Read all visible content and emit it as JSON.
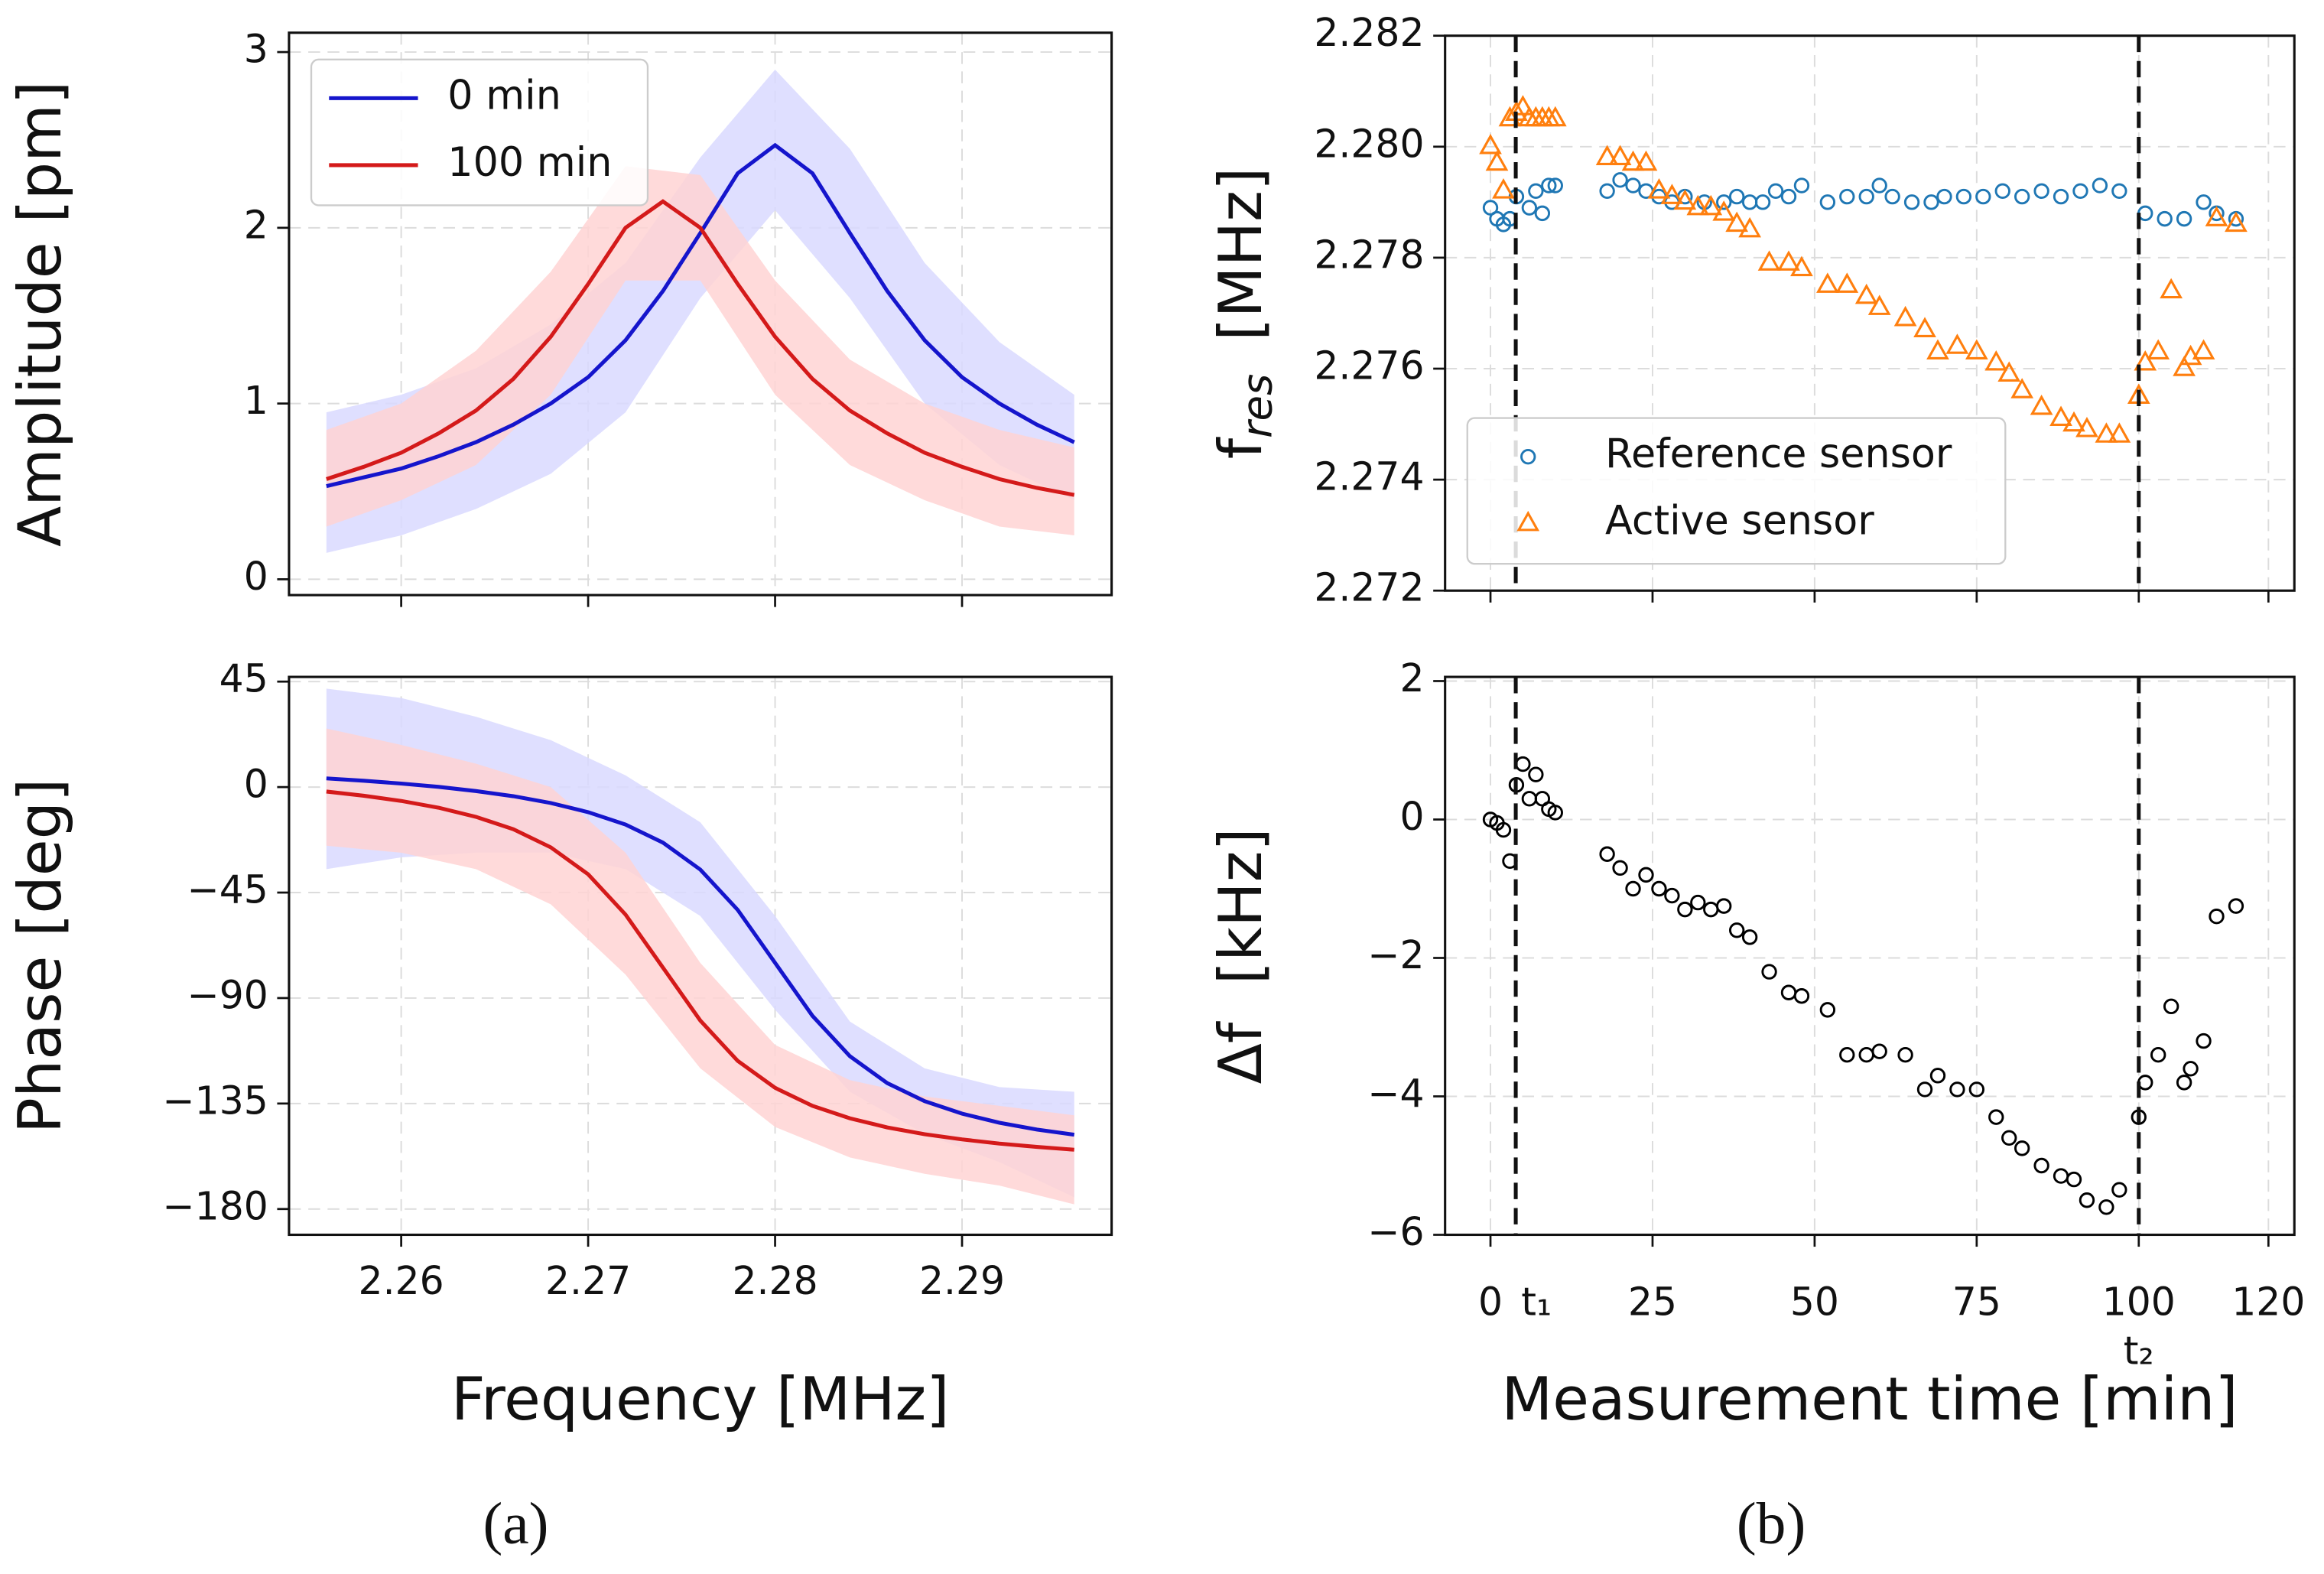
{
  "panels": [
    "(a)",
    "(b)"
  ],
  "chart_data": [
    {
      "type": "line",
      "ylabel": "Amplitude [pm]",
      "xlim": [
        2.254,
        2.298
      ],
      "ylim": [
        -0.09,
        3.11
      ],
      "xticks": [
        2.26,
        2.27,
        2.28,
        2.29
      ],
      "yticks": [
        0,
        1,
        2,
        3
      ],
      "xtick_labels": false,
      "grid": true,
      "legend": "upper left",
      "x": [
        2.256,
        2.258,
        2.26,
        2.262,
        2.264,
        2.266,
        2.268,
        2.27,
        2.272,
        2.274,
        2.276,
        2.278,
        2.28,
        2.282,
        2.284,
        2.286,
        2.288,
        2.29,
        2.292,
        2.294,
        2.296
      ],
      "band_x": [
        2.256,
        2.26,
        2.264,
        2.268,
        2.272,
        2.276,
        2.28,
        2.284,
        2.288,
        2.292,
        2.296
      ],
      "series": [
        {
          "name": "0 min",
          "color": "#1515cc",
          "band_color": "#d9d9ff",
          "values": [
            0.53,
            0.58,
            0.63,
            0.7,
            0.78,
            0.88,
            1.0,
            1.15,
            1.36,
            1.64,
            1.97,
            2.31,
            2.47,
            2.31,
            1.97,
            1.64,
            1.36,
            1.15,
            1.0,
            0.88,
            0.78
          ],
          "band_lower": [
            0.15,
            0.25,
            0.4,
            0.6,
            0.95,
            1.6,
            2.1,
            1.6,
            1.0,
            0.65,
            0.45
          ],
          "band_upper": [
            0.95,
            1.05,
            1.2,
            1.45,
            1.8,
            2.4,
            2.9,
            2.45,
            1.8,
            1.35,
            1.05
          ]
        },
        {
          "name": "100 min",
          "color": "#d41a1a",
          "band_color": "#ffd3d3",
          "values": [
            0.57,
            0.64,
            0.72,
            0.83,
            0.96,
            1.14,
            1.38,
            1.68,
            2.0,
            2.15,
            2.0,
            1.68,
            1.38,
            1.14,
            0.96,
            0.83,
            0.72,
            0.64,
            0.57,
            0.52,
            0.48
          ],
          "band_lower": [
            0.3,
            0.45,
            0.65,
            1.05,
            1.7,
            1.7,
            1.05,
            0.65,
            0.45,
            0.3,
            0.25
          ],
          "band_upper": [
            0.85,
            1.0,
            1.3,
            1.75,
            2.35,
            2.3,
            1.7,
            1.25,
            1.0,
            0.85,
            0.75
          ]
        }
      ]
    },
    {
      "type": "scatter",
      "ylabel": "f",
      "ylabel_sub": "res",
      "ylabel_unit": "[MHz]",
      "xlim": [
        -7,
        124
      ],
      "ylim": [
        2.272,
        2.282
      ],
      "xticks": [
        0,
        25,
        50,
        75,
        100,
        120
      ],
      "xtick_labels": false,
      "yticks": [
        2.272,
        2.274,
        2.276,
        2.278,
        {
          "value": 2.28,
          "label": "2.280"
        },
        2.282
      ],
      "grid": true,
      "legend": "lower left",
      "vlines": [
        3.9,
        100
      ],
      "series": [
        {
          "name": "Reference sensor",
          "color": "#1f77b4",
          "marker": "circle",
          "x": [
            0,
            1,
            2,
            3,
            4,
            6,
            7,
            8,
            9,
            10,
            18,
            20,
            22,
            24,
            26,
            28,
            30,
            33,
            36,
            38,
            40,
            42,
            44,
            46,
            48,
            52,
            55,
            58,
            60,
            62,
            65,
            68,
            70,
            73,
            76,
            79,
            82,
            85,
            88,
            91,
            94,
            97,
            101,
            104,
            107,
            110,
            112,
            115
          ],
          "values": [
            2.2789,
            2.2787,
            2.2786,
            2.2787,
            2.2791,
            2.2789,
            2.2792,
            2.2788,
            2.2793,
            2.2793,
            2.2792,
            2.2794,
            2.2793,
            2.2792,
            2.2791,
            2.279,
            2.2791,
            2.279,
            2.279,
            2.2791,
            2.279,
            2.279,
            2.2792,
            2.2791,
            2.2793,
            2.279,
            2.2791,
            2.2791,
            2.2793,
            2.2791,
            2.279,
            2.279,
            2.2791,
            2.2791,
            2.2791,
            2.2792,
            2.2791,
            2.2792,
            2.2791,
            2.2792,
            2.2793,
            2.2792,
            2.2788,
            2.2787,
            2.2787,
            2.279,
            2.2788,
            2.2787
          ]
        },
        {
          "name": "Active sensor",
          "color": "#ff7f0e",
          "marker": "triangle",
          "x": [
            0,
            1,
            2,
            3,
            4,
            5,
            6,
            7,
            8,
            9,
            10,
            18,
            20,
            22,
            24,
            26,
            28,
            30,
            32,
            34,
            36,
            38,
            40,
            43,
            46,
            48,
            52,
            55,
            58,
            60,
            64,
            67,
            69,
            72,
            75,
            78,
            80,
            82,
            85,
            88,
            90,
            92,
            95,
            97,
            100,
            101,
            103,
            105,
            107,
            108,
            110,
            112,
            115
          ],
          "values": [
            2.28,
            2.2797,
            2.2792,
            2.2805,
            2.2806,
            2.2807,
            2.2805,
            2.2805,
            2.2805,
            2.2805,
            2.2805,
            2.2798,
            2.2798,
            2.2797,
            2.2797,
            2.2792,
            2.2791,
            2.279,
            2.2789,
            2.2789,
            2.2788,
            2.2786,
            2.2785,
            2.2779,
            2.2779,
            2.2778,
            2.2775,
            2.2775,
            2.2773,
            2.2771,
            2.2769,
            2.2767,
            2.2763,
            2.2764,
            2.2763,
            2.2761,
            2.2759,
            2.2756,
            2.2753,
            2.2751,
            2.275,
            2.2749,
            2.2748,
            2.2748,
            2.2755,
            2.2761,
            2.2763,
            2.2774,
            2.276,
            2.2762,
            2.2763,
            2.2787,
            2.2786
          ]
        }
      ]
    },
    {
      "type": "line",
      "ylabel": "Phase [deg]",
      "xlabel": "Frequency [MHz]",
      "xlim": [
        2.254,
        2.298
      ],
      "ylim": [
        -191,
        47
      ],
      "xticks": [
        2.26,
        2.27,
        2.28,
        2.29
      ],
      "yticks": [
        45,
        0,
        {
          "value": -45,
          "label": "−45"
        },
        {
          "value": -90,
          "label": "−90"
        },
        {
          "value": -135,
          "label": "−135"
        },
        {
          "value": -180,
          "label": "−180"
        }
      ],
      "grid": true,
      "x": [
        2.256,
        2.258,
        2.26,
        2.262,
        2.264,
        2.266,
        2.268,
        2.27,
        2.272,
        2.274,
        2.276,
        2.278,
        2.28,
        2.282,
        2.284,
        2.286,
        2.288,
        2.29,
        2.292,
        2.294,
        2.296
      ],
      "band_x": [
        2.256,
        2.26,
        2.264,
        2.268,
        2.272,
        2.276,
        2.28,
        2.284,
        2.288,
        2.292,
        2.296
      ],
      "series": [
        {
          "color": "#1515cc",
          "band_color": "#d9d9ff",
          "values": [
            3.7,
            2.7,
            1.5,
            0.1,
            -1.7,
            -3.9,
            -6.8,
            -10.7,
            -16,
            -23.7,
            -35.2,
            -52.4,
            -75,
            -97.6,
            -114.8,
            -126.3,
            -134,
            -139.3,
            -143.2,
            -146.1,
            -148.3
          ],
          "band_lower": [
            -35,
            -30,
            -28,
            -28,
            -35,
            -55,
            -95,
            -130,
            -148,
            -160,
            -175
          ],
          "band_upper": [
            42,
            38,
            30,
            20,
            5,
            -15,
            -55,
            -100,
            -120,
            -128,
            -130
          ]
        },
        {
          "color": "#d41a1a",
          "band_color": "#ffd3d3",
          "values": [
            -1.9,
            -3.7,
            -5.9,
            -8.8,
            -12.7,
            -18,
            -25.7,
            -37.2,
            -54.4,
            -77,
            -99.6,
            -116.8,
            -128.3,
            -136,
            -141.3,
            -145.2,
            -148.1,
            -150.3,
            -152.1,
            -153.5,
            -154.7
          ],
          "band_lower": [
            -25,
            -28,
            -35,
            -50,
            -80,
            -120,
            -145,
            -158,
            -165,
            -170,
            -178
          ],
          "band_upper": [
            25,
            18,
            10,
            0,
            -28,
            -75,
            -110,
            -125,
            -132,
            -136,
            -140
          ]
        }
      ]
    },
    {
      "type": "scatter",
      "ylabel": "Δf  [kHz]",
      "xlabel": "Measurement time [min]",
      "xlim": [
        -7,
        124
      ],
      "ylim": [
        -6,
        2.06
      ],
      "xticks": [
        0,
        25,
        50,
        75,
        100,
        120
      ],
      "yticks": [
        {
          "value": -6,
          "label": "−6"
        },
        {
          "value": -4,
          "label": "−4"
        },
        {
          "value": -2,
          "label": "−2"
        },
        0,
        2
      ],
      "grid": true,
      "vlines": [
        3.9,
        100
      ],
      "annotations": [
        {
          "text": "t₁"
        },
        {
          "text": "t₂"
        }
      ],
      "series": [
        {
          "color": "#000000",
          "marker": "circle",
          "x": [
            0,
            1,
            2,
            3,
            4,
            5,
            6,
            7,
            8,
            9,
            10,
            18,
            20,
            22,
            24,
            26,
            28,
            30,
            32,
            34,
            36,
            38,
            40,
            43,
            46,
            48,
            52,
            55,
            58,
            60,
            64,
            67,
            69,
            72,
            75,
            78,
            80,
            82,
            85,
            88,
            90,
            92,
            95,
            97,
            100,
            101,
            103,
            105,
            107,
            108,
            110,
            112,
            115
          ],
          "values": [
            0,
            -0.05,
            -0.15,
            -0.6,
            0.5,
            0.8,
            0.3,
            0.65,
            0.3,
            0.15,
            0.1,
            -0.5,
            -0.7,
            -1.0,
            -0.8,
            -1.0,
            -1.1,
            -1.3,
            -1.2,
            -1.3,
            -1.25,
            -1.6,
            -1.7,
            -2.2,
            -2.5,
            -2.55,
            -2.75,
            -3.4,
            -3.4,
            -3.35,
            -3.4,
            -3.9,
            -3.7,
            -3.9,
            -3.9,
            -4.3,
            -4.6,
            -4.75,
            -5.0,
            -5.15,
            -5.2,
            -5.5,
            -5.6,
            -5.35,
            -4.3,
            -3.8,
            -3.4,
            -2.7,
            -3.8,
            -3.6,
            -3.2,
            -1.4,
            -1.25
          ]
        }
      ]
    }
  ]
}
